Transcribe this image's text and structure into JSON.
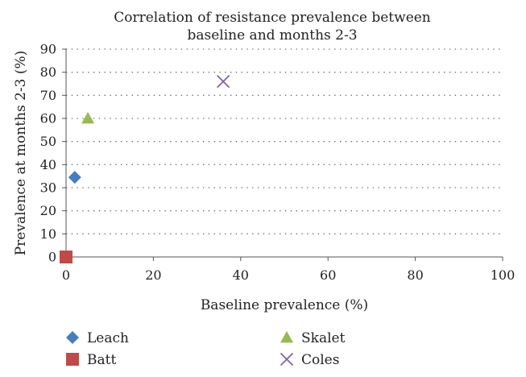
{
  "chart_data": {
    "type": "scatter",
    "title": "Correlation of resistance prevalence between baseline and months 2-3",
    "title_lines": [
      "Correlation of resistance prevalence between",
      "baseline and months 2-3"
    ],
    "xlabel": "Baseline prevalence (%)",
    "ylabel": "Prevalence at months 2-3 (%)",
    "xlim": [
      0,
      100
    ],
    "ylim": [
      0,
      90
    ],
    "xticks": [
      0,
      20,
      40,
      60,
      80,
      100
    ],
    "yticks": [
      0,
      10,
      20,
      30,
      40,
      50,
      60,
      70,
      80,
      90
    ],
    "grid": "horizontal dotted",
    "legend_position": "bottom",
    "series": [
      {
        "name": "Leach",
        "marker": "diamond",
        "color": "#4a7ebb",
        "points": [
          {
            "x": 2,
            "y": 34.5
          }
        ]
      },
      {
        "name": "Batt",
        "marker": "square",
        "color": "#be4b48",
        "points": [
          {
            "x": 0,
            "y": 0
          }
        ]
      },
      {
        "name": "Skalet",
        "marker": "triangle",
        "color": "#98b954",
        "points": [
          {
            "x": 5,
            "y": 60
          }
        ]
      },
      {
        "name": "Coles",
        "marker": "x",
        "color": "#7d60a0",
        "points": [
          {
            "x": 36,
            "y": 76
          }
        ]
      }
    ]
  }
}
